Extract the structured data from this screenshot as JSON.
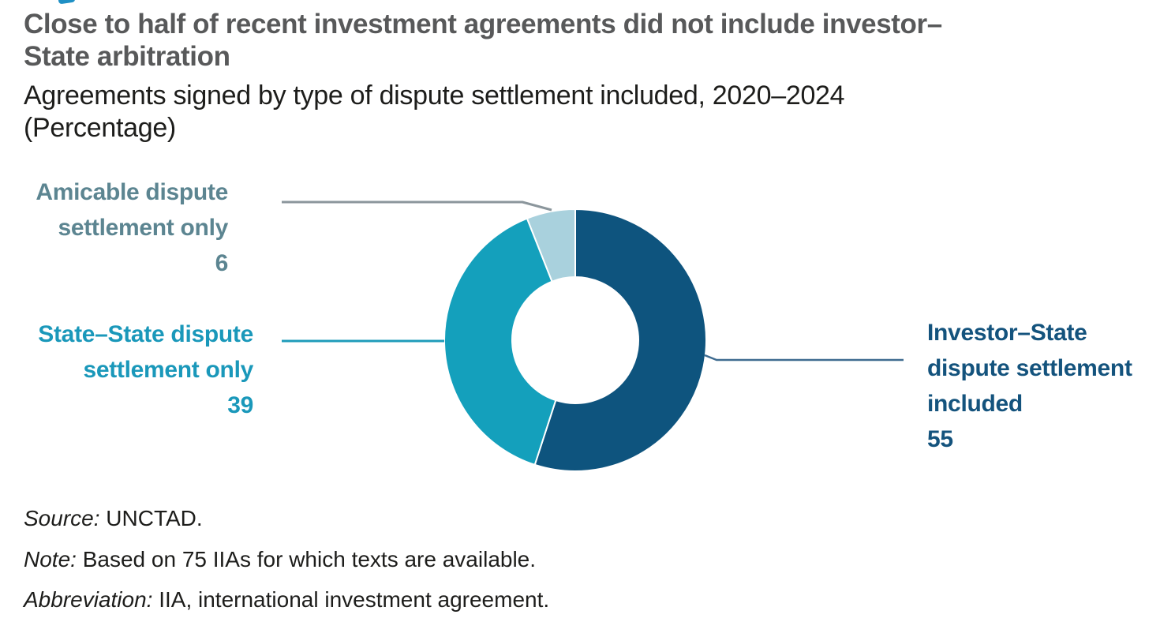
{
  "header": {
    "badge_fragment_color": "#1f90c5",
    "title_lines": [
      "Close to half of recent investment agreements did not include investor–",
      "State arbitration"
    ],
    "subtitle_lines": [
      "Agreements signed by type of dispute settlement included, 2020–2024",
      "(Percentage)"
    ]
  },
  "chart_data": {
    "type": "pie",
    "donut": true,
    "title": "Close to half of recent investment agreements did not include investor–State arbitration",
    "subtitle": "Agreements signed by type of dispute settlement included, 2020–2024",
    "unit": "Percentage",
    "start_angle_deg": 0,
    "clockwise": true,
    "total": 100,
    "slices": [
      {
        "id": "investor-state",
        "label": "Investor–State dispute settlement included",
        "value": 55,
        "color": "#0e547e"
      },
      {
        "id": "state-state",
        "label": "State–State dispute settlement only",
        "value": 39,
        "color": "#14a0bc"
      },
      {
        "id": "amicable",
        "label": "Amicable dispute settlement only",
        "value": 6,
        "color": "#a9d1dd"
      }
    ]
  },
  "callouts": {
    "amicable": {
      "lines": [
        "Amicable dispute",
        "settlement only"
      ],
      "value": "6",
      "color": "#5c8591",
      "leader_color": "#8b969c"
    },
    "state_state": {
      "lines": [
        "State–State dispute",
        "settlement only"
      ],
      "value": "39",
      "color": "#1a98ba",
      "leader_color": "#1f9cba"
    },
    "investor_state": {
      "lines": [
        "Investor–State",
        "dispute settlement",
        "included"
      ],
      "value": "55",
      "color": "#14537d",
      "leader_color": "#3f6c90"
    }
  },
  "footer": {
    "rows": [
      {
        "prefix": "Source:",
        "text": "UNCTAD."
      },
      {
        "prefix": "Note:",
        "text": "Based on 75 IIAs for which texts are available."
      },
      {
        "prefix": "Abbreviation:",
        "text": "IIA, international investment agreement."
      }
    ]
  }
}
